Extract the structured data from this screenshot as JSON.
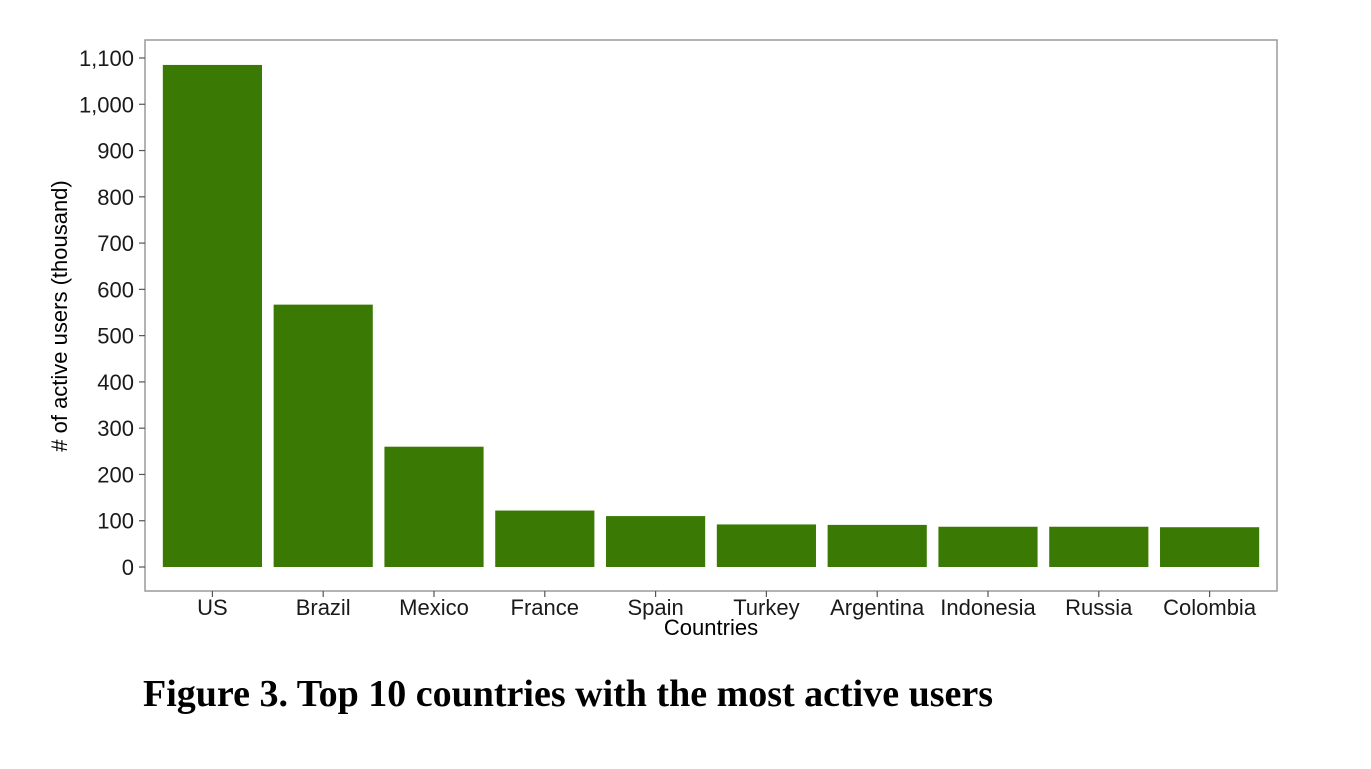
{
  "figure": {
    "caption": "Figure 3. Top 10 countries with the most active users"
  },
  "chart_data": {
    "type": "bar",
    "xlabel": "Countries",
    "ylabel": "# of active users (thousand)",
    "categories": [
      "US",
      "Brazil",
      "Mexico",
      "France",
      "Spain",
      "Turkey",
      "Argentina",
      "Indonesia",
      "Russia",
      "Colombia"
    ],
    "values": [
      1085,
      567,
      260,
      122,
      110,
      92,
      91,
      87,
      87,
      86
    ],
    "ylim": [
      0,
      1100
    ],
    "yticks": [
      0,
      100,
      200,
      300,
      400,
      500,
      600,
      700,
      800,
      900,
      1000,
      1100
    ],
    "ytick_labels": [
      "0",
      "100",
      "200",
      "300",
      "400",
      "500",
      "600",
      "700",
      "800",
      "900",
      "1,000",
      "1,100"
    ],
    "bar_color": "#3a7a04",
    "grid": false,
    "legend": "none"
  }
}
